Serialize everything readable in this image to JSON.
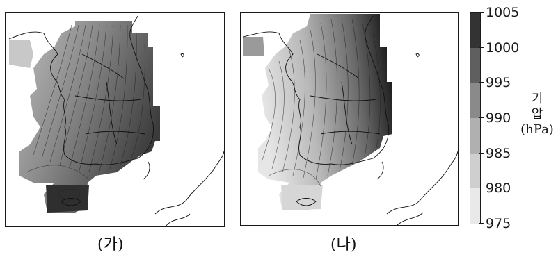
{
  "panels": [
    {
      "caption": "(가)"
    },
    {
      "caption": "(나)"
    }
  ],
  "colorbar": {
    "title_line1": "기",
    "title_line2": "압",
    "unit": "(hPa)",
    "ticks": [
      "1005",
      "1000",
      "995",
      "990",
      "985",
      "980",
      "975"
    ],
    "segments": [
      {
        "range": "1000-1005",
        "color": "#333333"
      },
      {
        "range": "995-1000",
        "color": "#5f5f5f"
      },
      {
        "range": "990-995",
        "color": "#8a8a8a"
      },
      {
        "range": "985-990",
        "color": "#b0b0b0"
      },
      {
        "range": "980-985",
        "color": "#cfcfcf"
      },
      {
        "range": "975-980",
        "color": "#e9e9e9"
      }
    ]
  }
}
